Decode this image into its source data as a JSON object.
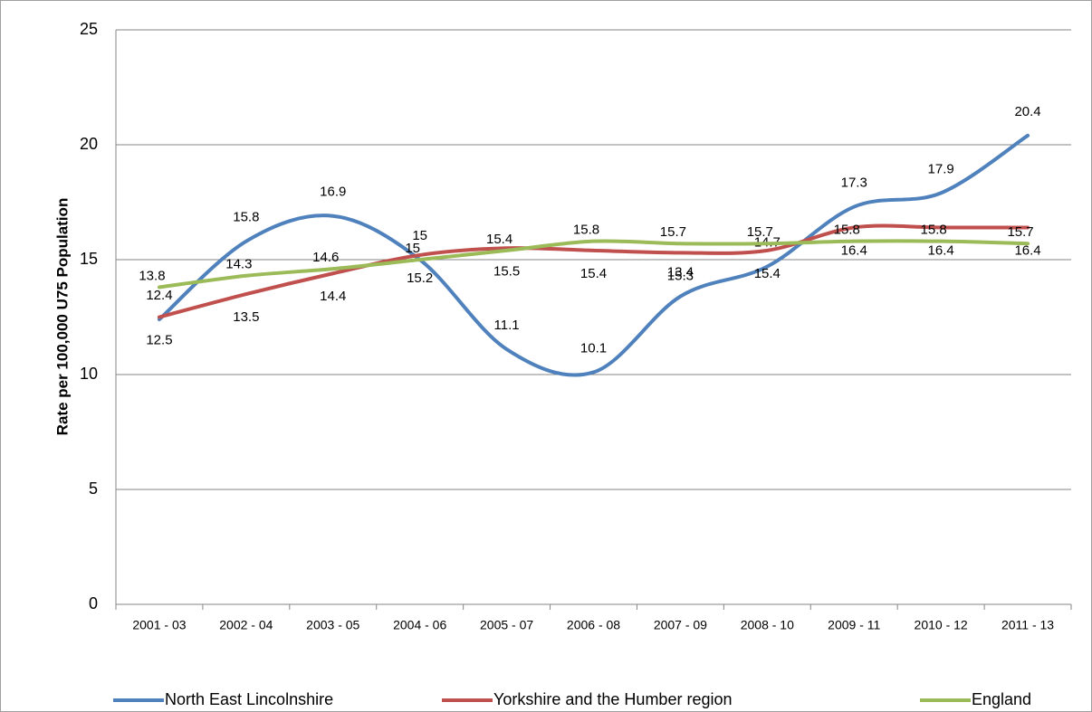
{
  "chart_data": {
    "type": "line",
    "y_label": "Rate per 100,000 U75 Population",
    "categories": [
      "2001 - 03",
      "2002 - 04",
      "2003 - 05",
      "2004 - 06",
      "2005 - 07",
      "2006 - 08",
      "2007 - 09",
      "2008 - 10",
      "2009 - 11",
      "2010 - 12",
      "2011 - 13"
    ],
    "series": [
      {
        "name": "North East Lincolnshire",
        "color": "#4f81bd",
        "values": [
          12.4,
          15.8,
          16.9,
          15.0,
          11.1,
          10.1,
          13.4,
          14.7,
          17.3,
          17.9,
          20.4
        ]
      },
      {
        "name": "Yorkshire and the Humber region",
        "color": "#c0504d",
        "values": [
          12.5,
          13.5,
          14.4,
          15.2,
          15.5,
          15.4,
          15.3,
          15.4,
          16.4,
          16.4,
          16.4
        ]
      },
      {
        "name": "England",
        "color": "#9bbb59",
        "values": [
          13.8,
          14.3,
          14.6,
          15.0,
          15.4,
          15.8,
          15.7,
          15.7,
          15.8,
          15.8,
          15.7
        ]
      }
    ],
    "ylim": [
      0,
      25
    ],
    "yticks": [
      0,
      5,
      10,
      15,
      20,
      25
    ],
    "grid": true,
    "smooth": true,
    "legend": "bottom"
  }
}
